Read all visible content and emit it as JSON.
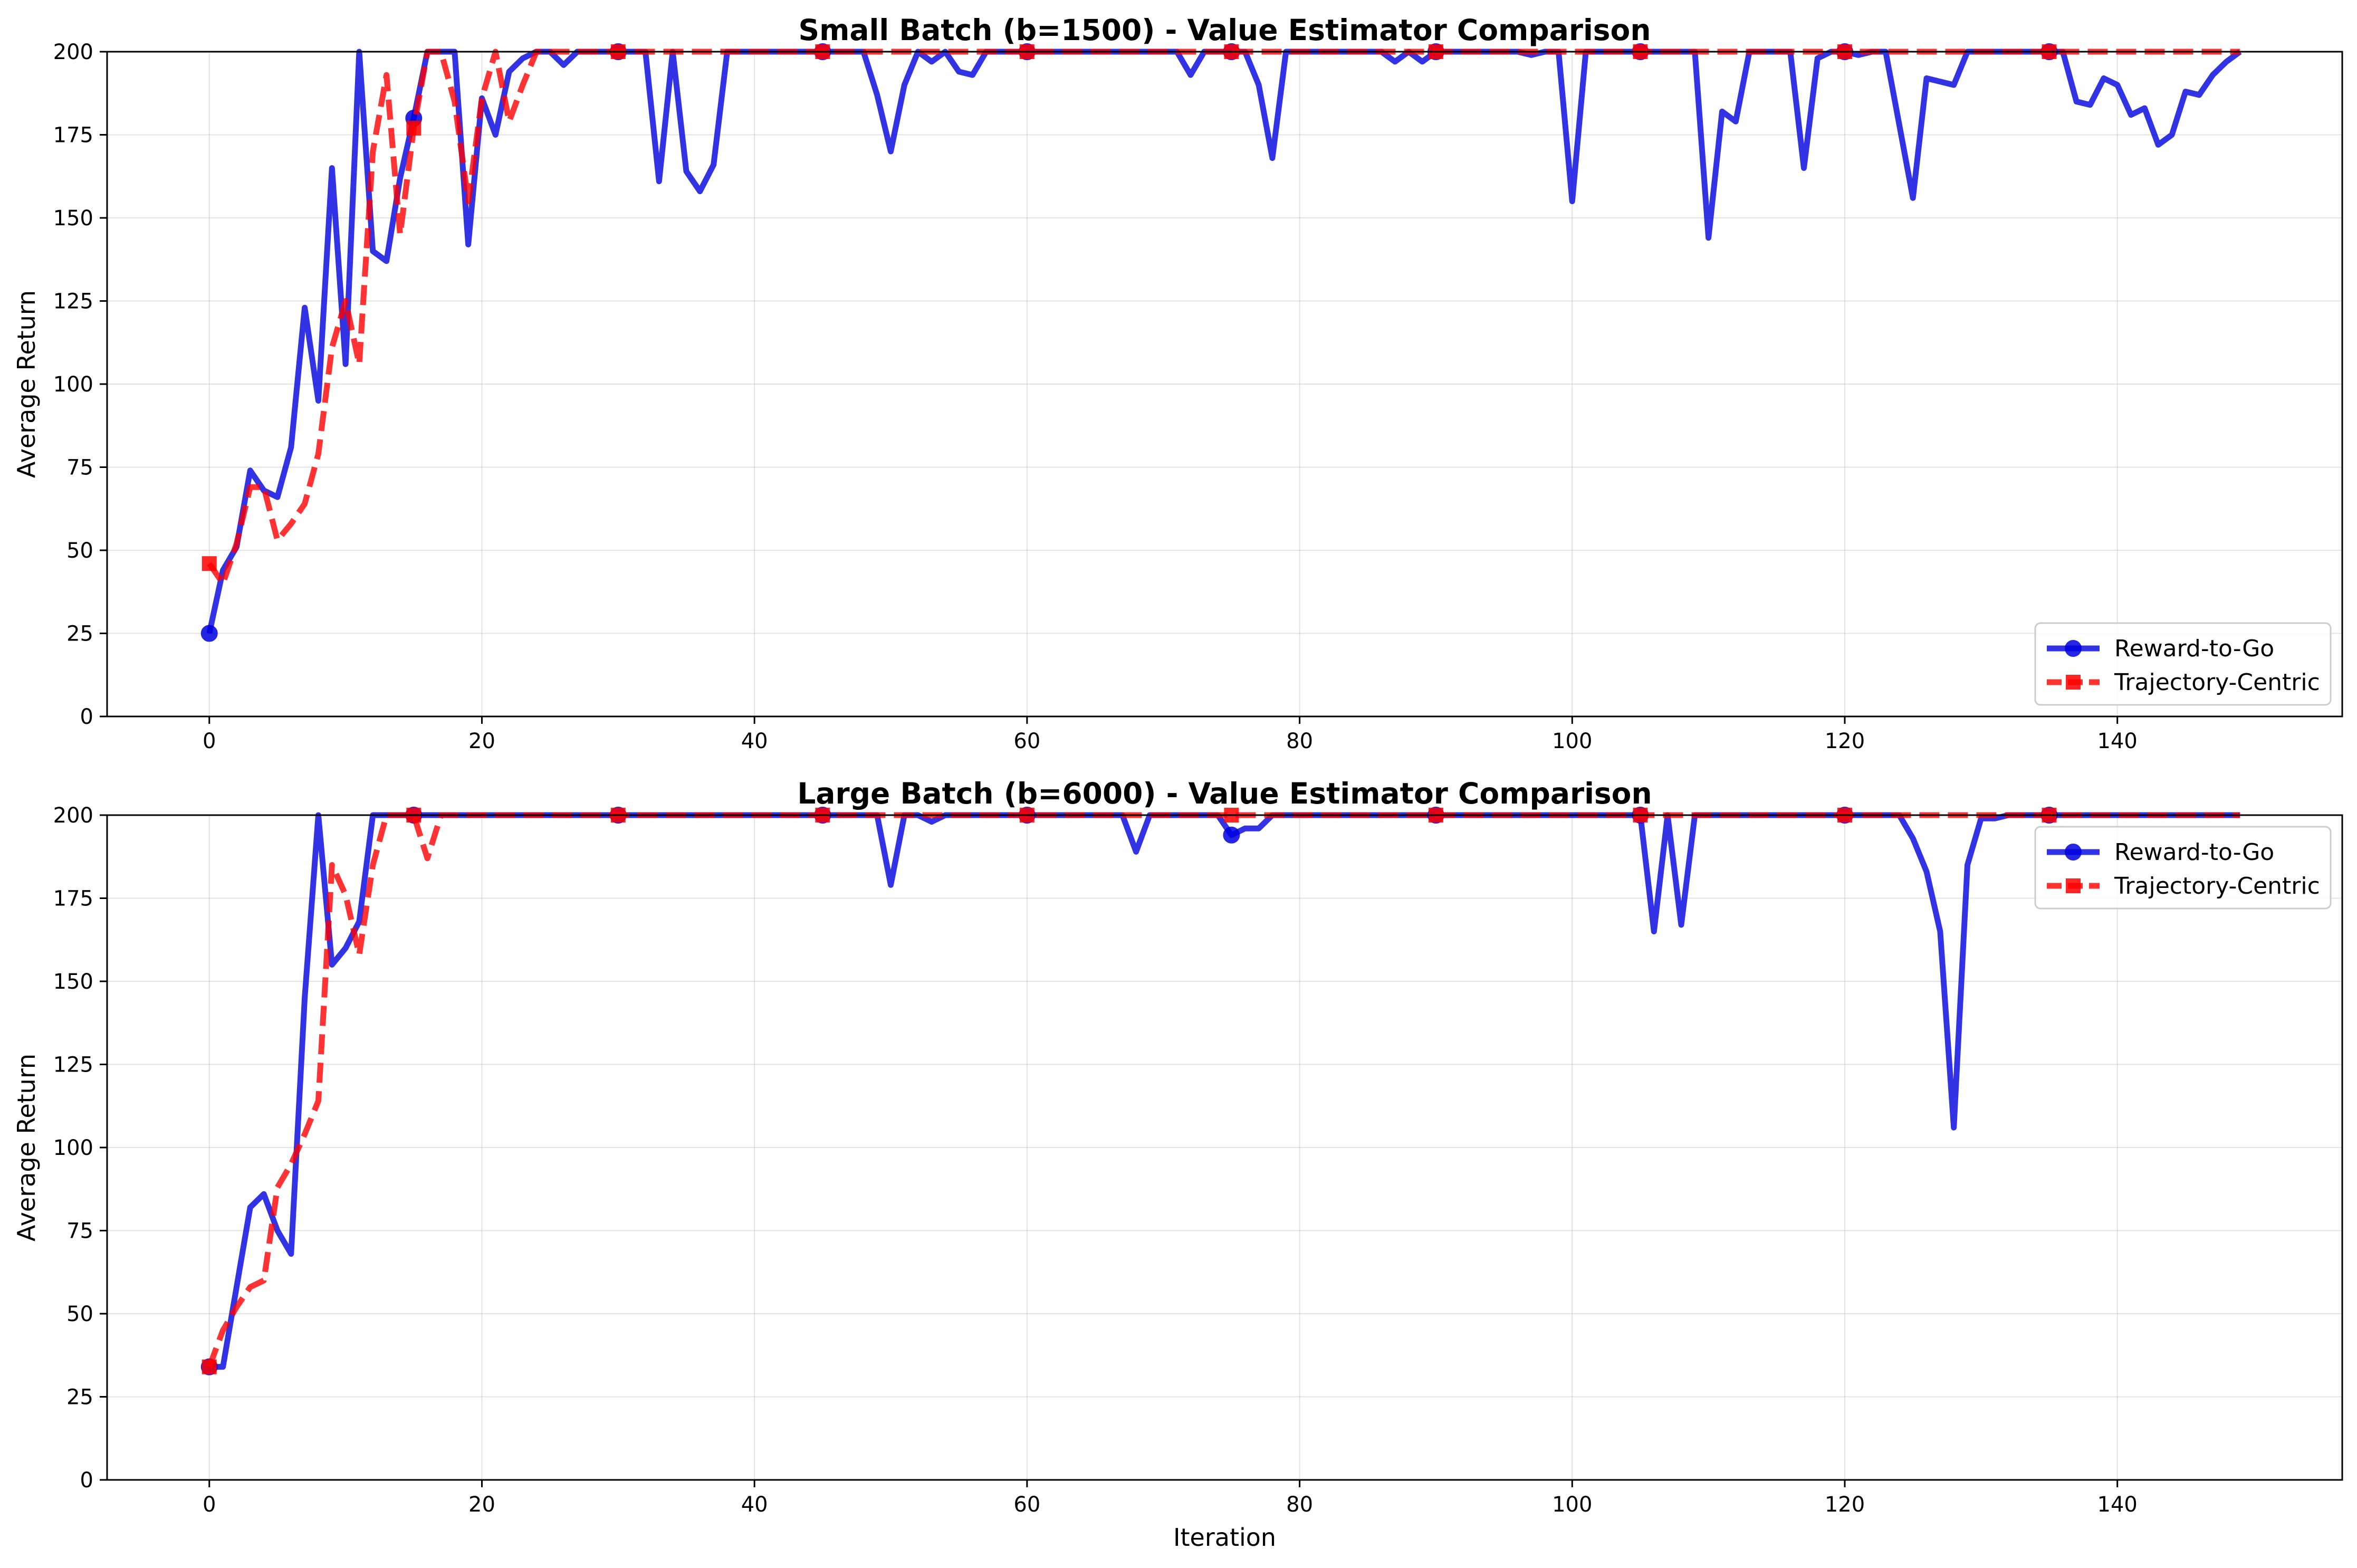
{
  "chart_data": [
    {
      "type": "line",
      "title": "Small Batch (b=1500) - Value Estimator Comparison",
      "xlabel": "",
      "ylabel": "Average Return",
      "xlim": [
        -7.5,
        156.5
      ],
      "ylim": [
        0,
        200
      ],
      "xticks": [
        0,
        20,
        40,
        60,
        80,
        100,
        120,
        140
      ],
      "yticks": [
        0,
        25,
        50,
        75,
        100,
        125,
        150,
        175,
        200
      ],
      "grid": true,
      "legend_position": "lower-right",
      "series": [
        {
          "name": "Reward-to-Go",
          "color": "#0000e0",
          "style": "solid",
          "marker": "circle",
          "marker_every": 15,
          "values": [
            25,
            44,
            51,
            74,
            68,
            66,
            81,
            123,
            95,
            165,
            106,
            200,
            140,
            137,
            162,
            180,
            200,
            200,
            200,
            142,
            186,
            175,
            194,
            198,
            200,
            200,
            196,
            200,
            200,
            200,
            200,
            200,
            200,
            161,
            200,
            164,
            158,
            166,
            200,
            200,
            200,
            200,
            200,
            200,
            200,
            200,
            200,
            200,
            200,
            187,
            170,
            190,
            200,
            197,
            200,
            194,
            193,
            200,
            200,
            200,
            200,
            200,
            200,
            200,
            200,
            200,
            200,
            200,
            200,
            200,
            200,
            200,
            193,
            200,
            200,
            200,
            200,
            190,
            168,
            200,
            200,
            200,
            200,
            200,
            200,
            200,
            200,
            197,
            200,
            197,
            200,
            200,
            200,
            200,
            200,
            200,
            200,
            199,
            200,
            200,
            155,
            200,
            200,
            200,
            200,
            200,
            200,
            200,
            200,
            200,
            144,
            182,
            179,
            200,
            200,
            200,
            200,
            165,
            198,
            200,
            200,
            199,
            200,
            200,
            178,
            156,
            192,
            191,
            190,
            200,
            200,
            200,
            200,
            200,
            200,
            200,
            200,
            185,
            184,
            192,
            190,
            181,
            183,
            172,
            175,
            188,
            187,
            193,
            197,
            200
          ]
        },
        {
          "name": "Trajectory-Centric",
          "color": "#ff0000",
          "style": "dashed",
          "marker": "square",
          "marker_every": 15,
          "values": [
            46,
            40,
            52,
            69,
            69,
            53,
            58,
            64,
            79,
            111,
            125,
            106,
            170,
            193,
            145,
            177,
            200,
            200,
            185,
            155,
            186,
            200,
            179,
            190,
            200,
            200,
            200,
            200,
            200,
            200,
            200,
            200,
            200,
            200,
            200,
            200,
            200,
            200,
            200,
            200,
            200,
            200,
            200,
            200,
            200,
            200,
            200,
            200,
            200,
            200,
            200,
            200,
            200,
            200,
            200,
            200,
            200,
            200,
            200,
            200,
            200,
            200,
            200,
            200,
            200,
            200,
            200,
            200,
            200,
            200,
            200,
            200,
            200,
            200,
            200,
            200,
            200,
            200,
            200,
            200,
            200,
            200,
            200,
            200,
            200,
            200,
            200,
            200,
            200,
            200,
            200,
            200,
            200,
            200,
            200,
            200,
            200,
            200,
            200,
            200,
            200,
            200,
            200,
            200,
            200,
            200,
            200,
            200,
            200,
            200,
            200,
            200,
            200,
            200,
            200,
            200,
            200,
            200,
            200,
            200,
            200,
            200,
            200,
            200,
            200,
            200,
            200,
            200,
            200,
            200,
            200,
            200,
            200,
            200,
            200,
            200,
            200,
            200,
            200,
            200,
            200,
            200,
            200,
            200,
            200,
            200,
            200,
            200,
            200,
            200
          ]
        }
      ]
    },
    {
      "type": "line",
      "title": "Large Batch (b=6000) - Value Estimator Comparison",
      "xlabel": "Iteration",
      "ylabel": "Average Return",
      "xlim": [
        -7.5,
        156.5
      ],
      "ylim": [
        0,
        200
      ],
      "xticks": [
        0,
        20,
        40,
        60,
        80,
        100,
        120,
        140
      ],
      "yticks": [
        0,
        25,
        50,
        75,
        100,
        125,
        150,
        175,
        200
      ],
      "grid": true,
      "legend_position": "upper-right",
      "series": [
        {
          "name": "Reward-to-Go",
          "color": "#0000e0",
          "style": "solid",
          "marker": "circle",
          "marker_every": 15,
          "values": [
            34,
            34,
            58,
            82,
            86,
            75,
            68,
            145,
            200,
            155,
            160,
            168,
            200,
            200,
            200,
            200,
            200,
            200,
            200,
            200,
            200,
            200,
            200,
            200,
            200,
            200,
            200,
            200,
            200,
            200,
            200,
            200,
            200,
            200,
            200,
            200,
            200,
            200,
            200,
            200,
            200,
            200,
            200,
            200,
            200,
            200,
            200,
            200,
            200,
            200,
            179,
            200,
            200,
            198,
            200,
            200,
            200,
            200,
            200,
            200,
            200,
            200,
            200,
            200,
            200,
            200,
            200,
            200,
            189,
            200,
            200,
            200,
            200,
            200,
            200,
            194,
            196,
            196,
            200,
            200,
            200,
            200,
            200,
            200,
            200,
            200,
            200,
            200,
            200,
            200,
            200,
            200,
            200,
            200,
            200,
            200,
            200,
            200,
            200,
            200,
            200,
            200,
            200,
            200,
            200,
            200,
            165,
            200,
            167,
            200,
            200,
            200,
            200,
            200,
            200,
            200,
            200,
            200,
            200,
            200,
            200,
            200,
            200,
            200,
            200,
            193,
            183,
            165,
            106,
            185,
            199,
            199,
            200,
            200,
            200,
            200,
            200,
            200,
            200,
            200,
            200,
            200,
            200,
            200,
            200,
            200,
            200,
            200,
            200,
            200
          ]
        },
        {
          "name": "Trajectory-Centric",
          "color": "#ff0000",
          "style": "dashed",
          "marker": "square",
          "marker_every": 15,
          "values": [
            34,
            45,
            52,
            58,
            60,
            88,
            95,
            104,
            114,
            185,
            176,
            158,
            185,
            200,
            200,
            200,
            187,
            200,
            200,
            200,
            200,
            200,
            200,
            200,
            200,
            200,
            200,
            200,
            200,
            200,
            200,
            200,
            200,
            200,
            200,
            200,
            200,
            200,
            200,
            200,
            200,
            200,
            200,
            200,
            200,
            200,
            200,
            200,
            200,
            200,
            200,
            200,
            200,
            200,
            200,
            200,
            200,
            200,
            200,
            200,
            200,
            200,
            200,
            200,
            200,
            200,
            200,
            200,
            200,
            200,
            200,
            200,
            200,
            200,
            200,
            200,
            200,
            200,
            200,
            200,
            200,
            200,
            200,
            200,
            200,
            200,
            200,
            200,
            200,
            200,
            200,
            200,
            200,
            200,
            200,
            200,
            200,
            200,
            200,
            200,
            200,
            200,
            200,
            200,
            200,
            200,
            200,
            200,
            200,
            200,
            200,
            200,
            200,
            200,
            200,
            200,
            200,
            200,
            200,
            200,
            200,
            200,
            200,
            200,
            200,
            200,
            200,
            200,
            200,
            200,
            200,
            200,
            200,
            200,
            200,
            200,
            200,
            200,
            200,
            200,
            200,
            200,
            200,
            200,
            200,
            200,
            200,
            200,
            200,
            200
          ]
        }
      ]
    }
  ]
}
